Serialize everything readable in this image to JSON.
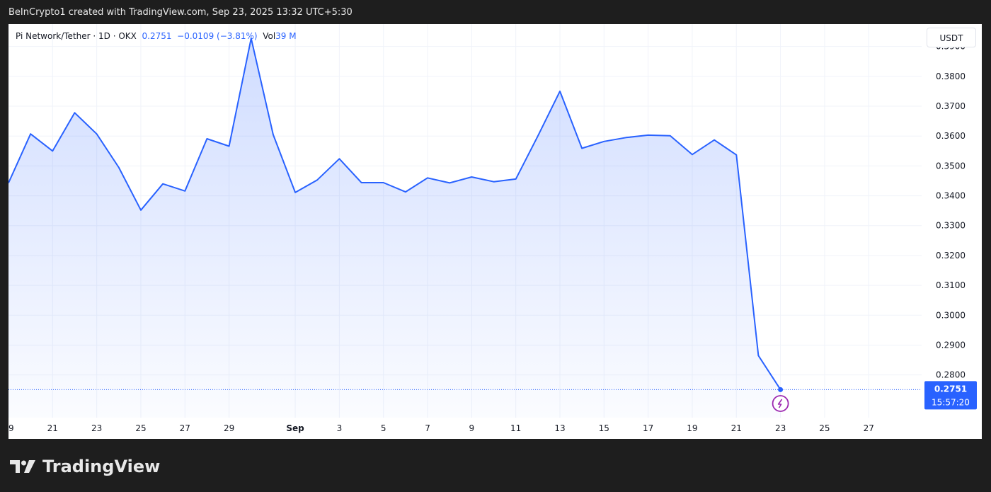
{
  "header": {
    "attribution": "BeInCrypto1 created with TradingView.com, Sep 23, 2025 13:32 UTC+5:30"
  },
  "legend": {
    "symbol": "Pi Network/Tether · 1D · OKX",
    "price": "0.2751",
    "change": "−0.0109 (−3.81%)",
    "vol_label": "Vol",
    "vol_value": "39 M"
  },
  "currency_button": "USDT",
  "brand": {
    "name": "TradingView",
    "logo_icon": "tradingview-logo-icon"
  },
  "last_price_tag": {
    "price": "0.2751",
    "countdown": "15:57:20"
  },
  "lightning_icon": "lightning-icon",
  "colors": {
    "line": "#2962ff",
    "tag_bg": "#2962ff",
    "lightning": "#9c27b0"
  },
  "chart_data": {
    "type": "area",
    "y_axis_position": "right",
    "ylim": [
      0.2657,
      0.3975
    ],
    "y_ticks": [
      0.28,
      0.29,
      0.3,
      0.31,
      0.32,
      0.33,
      0.34,
      0.35,
      0.36,
      0.37,
      0.38,
      0.39
    ],
    "y_tick_labels": [
      "0.2800",
      "0.2900",
      "0.3000",
      "0.3100",
      "0.3200",
      "0.3300",
      "0.3400",
      "0.3500",
      "0.3600",
      "0.3700",
      "0.3800",
      "0.3900"
    ],
    "x_ticks": [
      {
        "day": 19,
        "label": "19"
      },
      {
        "day": 21,
        "label": "21"
      },
      {
        "day": 23,
        "label": "23"
      },
      {
        "day": 25,
        "label": "25"
      },
      {
        "day": 27,
        "label": "27"
      },
      {
        "day": 29,
        "label": "29"
      },
      {
        "day": 32,
        "label": "Sep"
      },
      {
        "day": 34,
        "label": "3"
      },
      {
        "day": 36,
        "label": "5"
      },
      {
        "day": 38,
        "label": "7"
      },
      {
        "day": 40,
        "label": "9"
      },
      {
        "day": 42,
        "label": "11"
      },
      {
        "day": 44,
        "label": "13"
      },
      {
        "day": 46,
        "label": "15"
      },
      {
        "day": 48,
        "label": "17"
      },
      {
        "day": 50,
        "label": "19"
      },
      {
        "day": 52,
        "label": "21"
      },
      {
        "day": 54,
        "label": "23"
      },
      {
        "day": 56,
        "label": "25"
      },
      {
        "day": 58,
        "label": "27"
      }
    ],
    "xlim": [
      19,
      60.4
    ],
    "series": [
      {
        "values": [
          [
            19,
            0.3443
          ],
          [
            20,
            0.3607
          ],
          [
            21,
            0.355
          ],
          [
            22,
            0.3678
          ],
          [
            23,
            0.3607
          ],
          [
            24,
            0.3495
          ],
          [
            25,
            0.3352
          ],
          [
            26,
            0.344
          ],
          [
            27,
            0.3416
          ],
          [
            28,
            0.3591
          ],
          [
            29,
            0.3566
          ],
          [
            30,
            0.3927
          ],
          [
            31,
            0.3605
          ],
          [
            32,
            0.3411
          ],
          [
            33,
            0.3453
          ],
          [
            34,
            0.3524
          ],
          [
            35,
            0.3444
          ],
          [
            36,
            0.3444
          ],
          [
            37,
            0.3413
          ],
          [
            38,
            0.346
          ],
          [
            39,
            0.3443
          ],
          [
            40,
            0.3463
          ],
          [
            41,
            0.3447
          ],
          [
            42,
            0.3456
          ],
          [
            43,
            0.36
          ],
          [
            44,
            0.375
          ],
          [
            45,
            0.3559
          ],
          [
            46,
            0.3582
          ],
          [
            47,
            0.3595
          ],
          [
            48,
            0.3603
          ],
          [
            49,
            0.3601
          ],
          [
            50,
            0.3538
          ],
          [
            51,
            0.3587
          ],
          [
            52,
            0.3537
          ],
          [
            53,
            0.2865
          ],
          [
            54,
            0.2751
          ]
        ]
      }
    ],
    "last_price": 0.2751
  }
}
